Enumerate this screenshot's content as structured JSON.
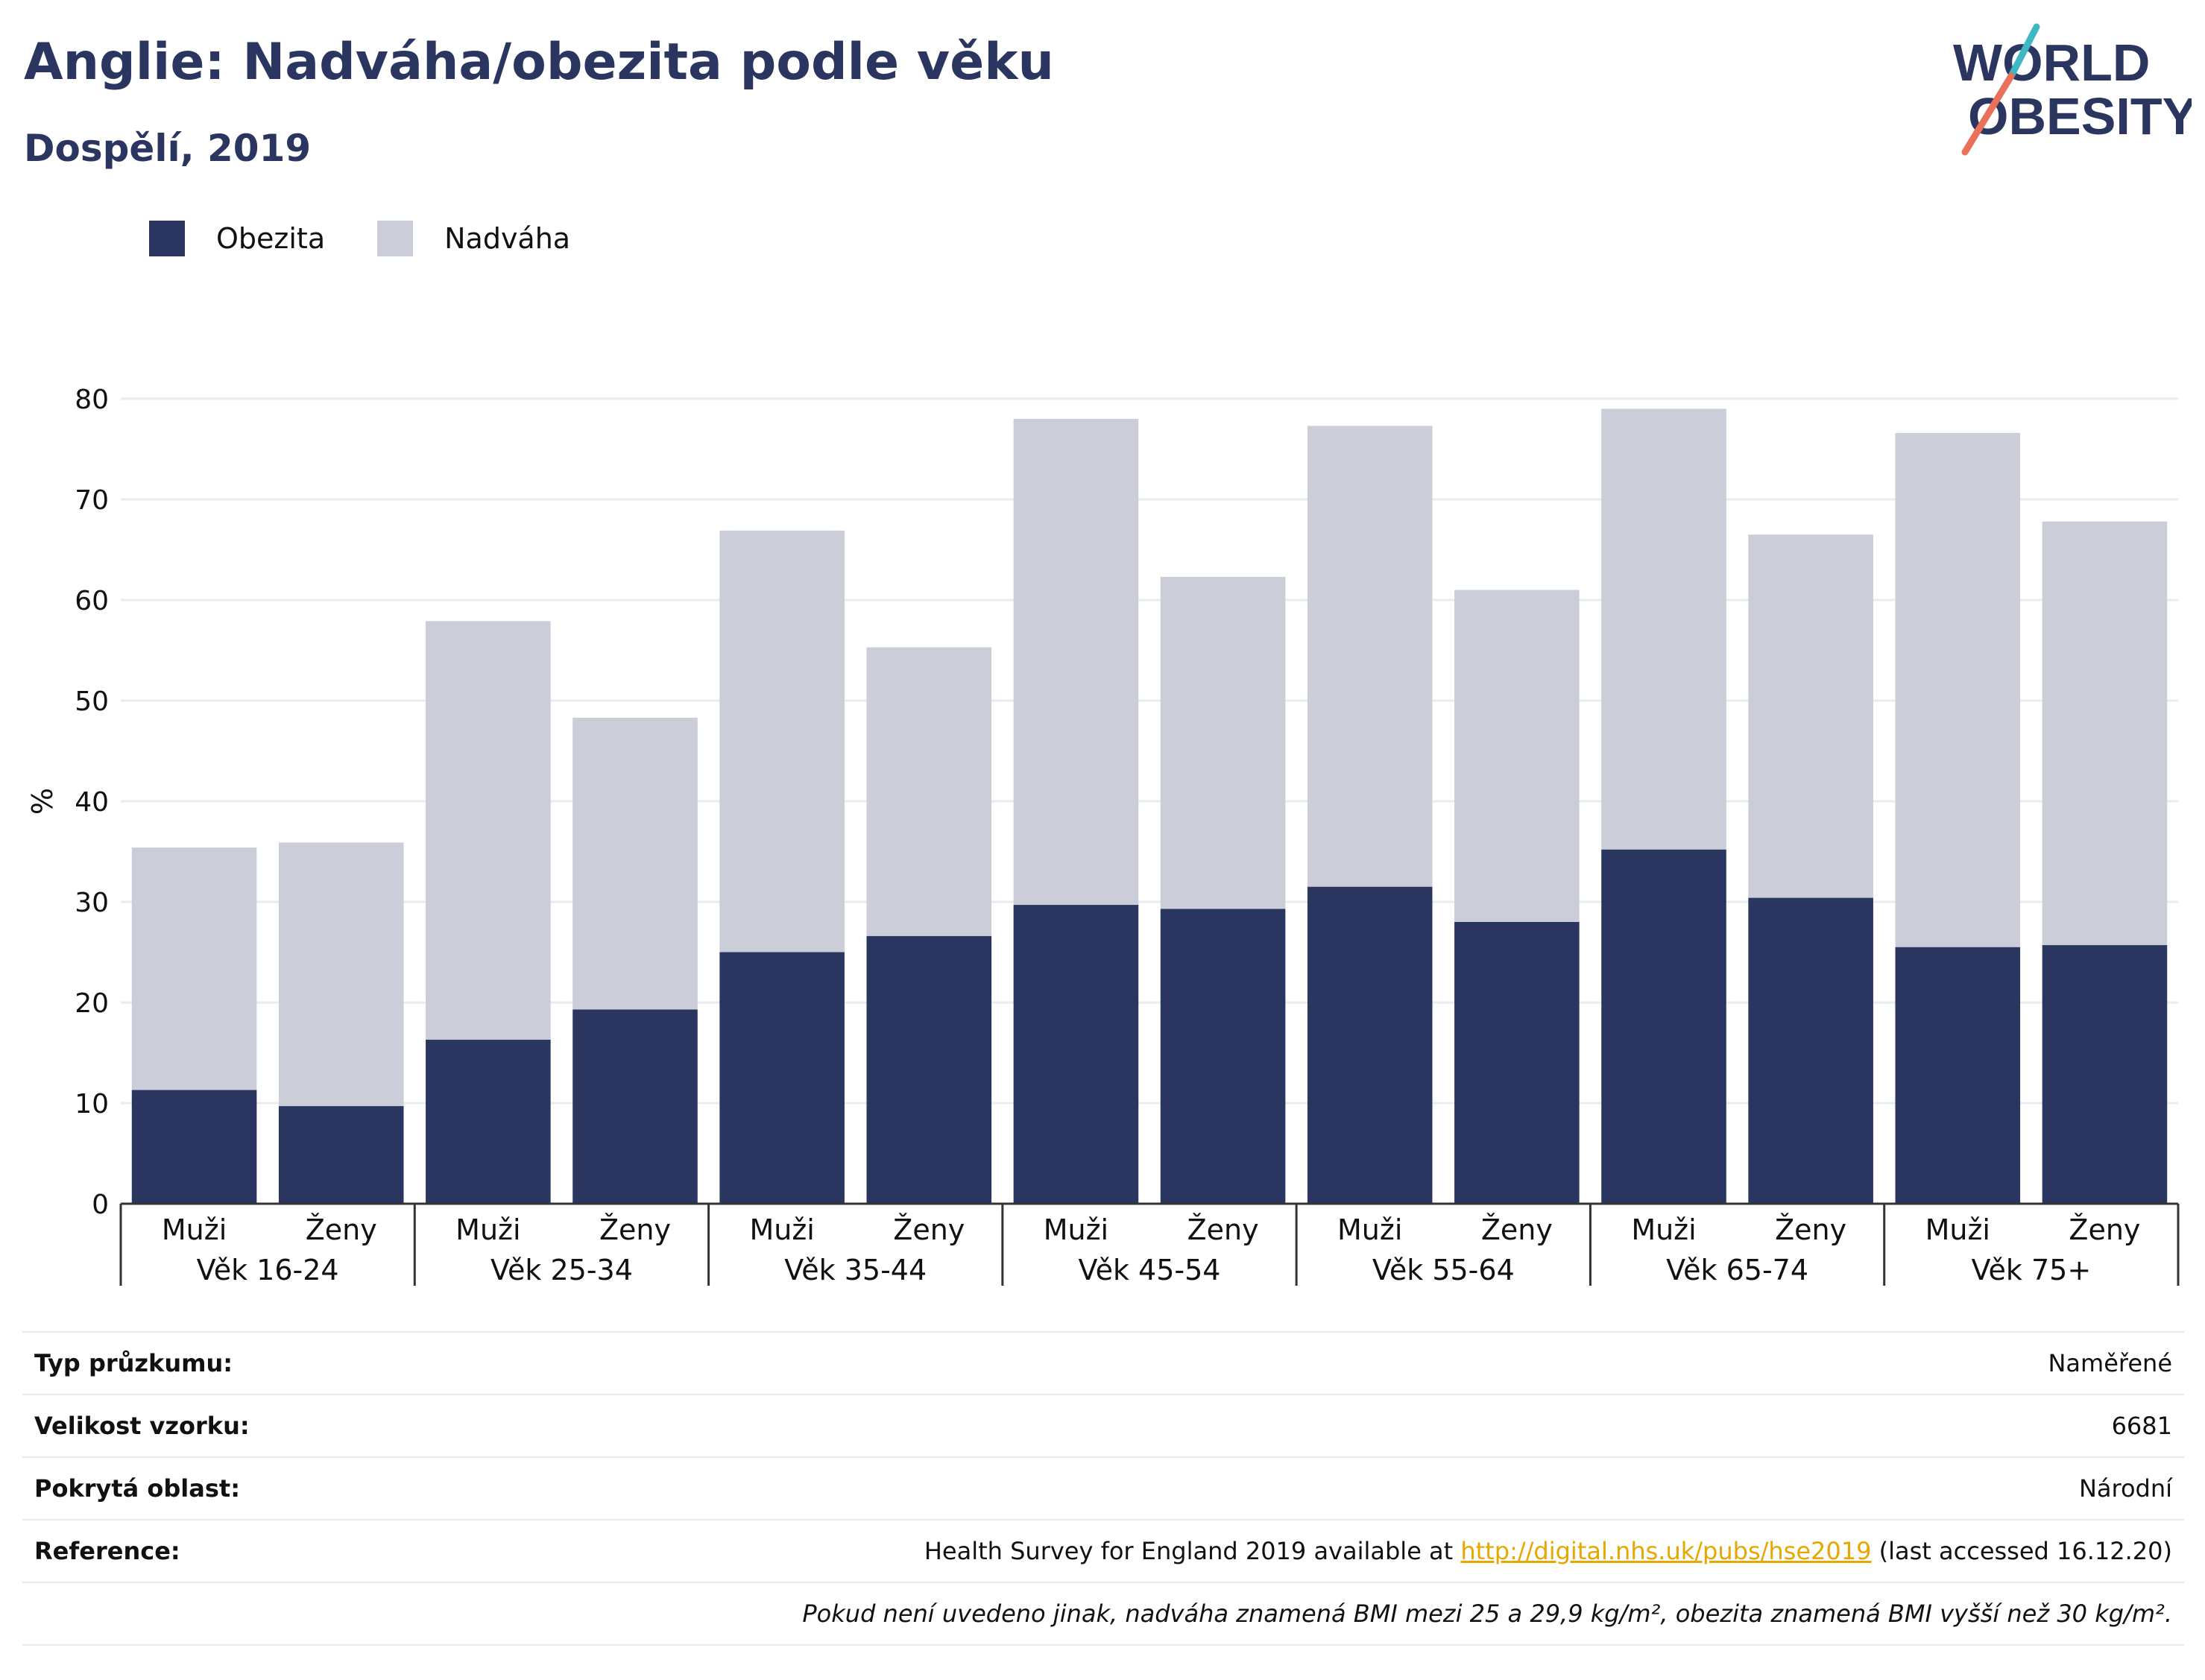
{
  "title": "Anglie: Nadváha/obezita podle věku",
  "subtitle": "Dospělí, 2019",
  "logo": {
    "line1": "WORLD",
    "line2": "OBESITY"
  },
  "colors": {
    "obezita": "#2b3660",
    "nadvaha": "#cbcdd9",
    "title": "#2b3660",
    "link": "#e6a800"
  },
  "legend": [
    {
      "label": "Obezita",
      "color": "#2b3660"
    },
    {
      "label": "Nadváha",
      "color": "#cbcdd9"
    }
  ],
  "chart_data": {
    "type": "bar",
    "stacked": true,
    "ylabel": "%",
    "ylim": [
      0,
      80
    ],
    "yticks": [
      0,
      10,
      20,
      30,
      40,
      50,
      60,
      70,
      80
    ],
    "grid": true,
    "legend_position": "top-left",
    "groups": [
      "Věk 16-24",
      "Věk 25-34",
      "Věk 35-44",
      "Věk 45-54",
      "Věk 55-64",
      "Věk 65-74",
      "Věk 75+"
    ],
    "subcategories": [
      "Muži",
      "Ženy"
    ],
    "series": [
      {
        "name": "Obezita",
        "values": [
          11.3,
          9.7,
          16.3,
          19.3,
          25.0,
          26.6,
          29.7,
          29.3,
          31.5,
          28.0,
          35.2,
          30.4,
          25.5,
          25.7
        ]
      },
      {
        "name": "Nadváha",
        "values": [
          24.1,
          26.2,
          41.6,
          29.0,
          41.9,
          28.7,
          48.3,
          33.0,
          45.8,
          33.0,
          43.8,
          36.1,
          51.1,
          42.1
        ]
      }
    ]
  },
  "meta": {
    "rows": [
      {
        "label": "Typ průzkumu:",
        "value": "Naměřené"
      },
      {
        "label": "Velikost vzorku:",
        "value": "6681"
      },
      {
        "label": "Pokrytá oblast:",
        "value": "Národní"
      }
    ],
    "reference": {
      "label": "Reference:",
      "prefix": "Health Survey for England 2019 available at ",
      "link": "http://digital.nhs.uk/pubs/hse2019",
      "suffix": " (last accessed 16.12.20)"
    },
    "note": "Pokud není uvedeno jinak, nadváha znamená BMI mezi 25 a 29,9 kg/m², obezita znamená BMI vyšší než 30 kg/m²."
  }
}
